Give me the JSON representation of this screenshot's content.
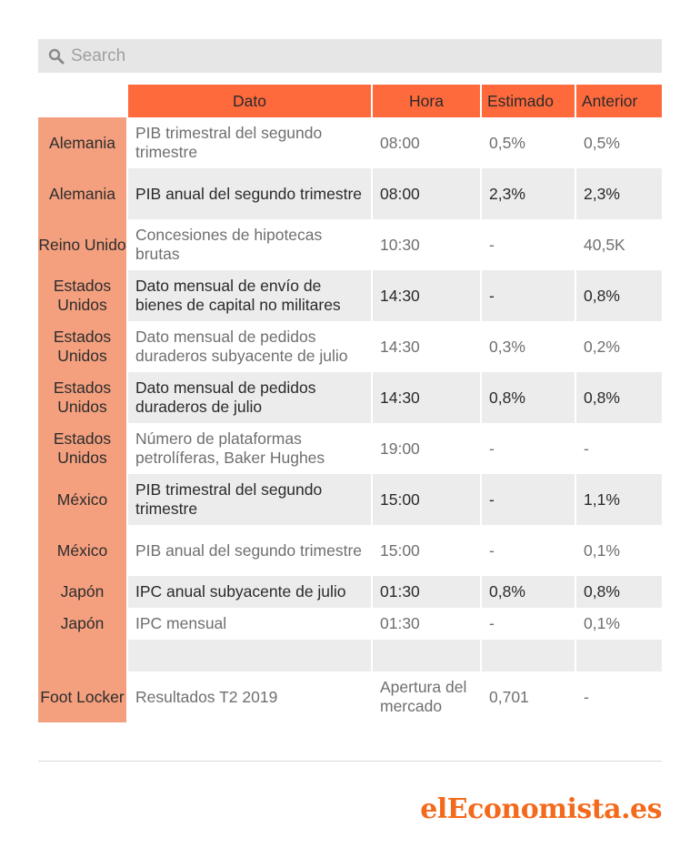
{
  "search": {
    "placeholder": "Search"
  },
  "table": {
    "headers": [
      "",
      "Dato",
      "Hora",
      "Estimado",
      "Anterior"
    ],
    "rows": [
      [
        "Alemania",
        "PIB trimestral del segundo trimestre",
        "08:00",
        "0,5%",
        "0,5%"
      ],
      [
        "Alemania",
        "PIB anual del segundo trimestre",
        "08:00",
        "2,3%",
        "2,3%"
      ],
      [
        "Reino Unido",
        "Concesiones de hipotecas brutas",
        "10:30",
        "-",
        "40,5K"
      ],
      [
        "Estados Unidos",
        "Dato mensual de envío de bienes de capital no militares",
        "14:30",
        "-",
        "0,8%"
      ],
      [
        "Estados Unidos",
        "Dato mensual de pedidos duraderos subyacente de julio",
        "14:30",
        "0,3%",
        "0,2%"
      ],
      [
        "Estados Unidos",
        "Dato mensual de pedidos duraderos de julio",
        "14:30",
        "0,8%",
        "0,8%"
      ],
      [
        "Estados Unidos",
        "Número de plataformas petrolíferas, Baker Hughes",
        "19:00",
        "-",
        "-"
      ],
      [
        "México",
        "PIB trimestral del segundo trimestre",
        "15:00",
        "-",
        "1,1%"
      ],
      [
        "México",
        "PIB anual del segundo trimestre",
        "15:00",
        "-",
        "0,1%"
      ],
      [
        "Japón",
        "IPC anual subyacente de julio",
        "01:30",
        "0,8%",
        "0,8%"
      ],
      [
        "Japón",
        "IPC mensual",
        "01:30",
        "-",
        "0,1%"
      ],
      [
        "",
        "",
        "",
        "",
        ""
      ],
      [
        "Foot Locker",
        "Resultados T2 2019",
        "Apertura del mercado",
        "0,701",
        "-"
      ]
    ]
  },
  "logo": {
    "part1": "el",
    "part2": "E",
    "part3": "co",
    "part4": "nomista.es"
  },
  "colors": {
    "header": "#ff6a3d",
    "country": "#f4a07f",
    "stripe": "#ececec",
    "logo": "#f46a1c"
  },
  "icons": {
    "search": "search-icon"
  }
}
